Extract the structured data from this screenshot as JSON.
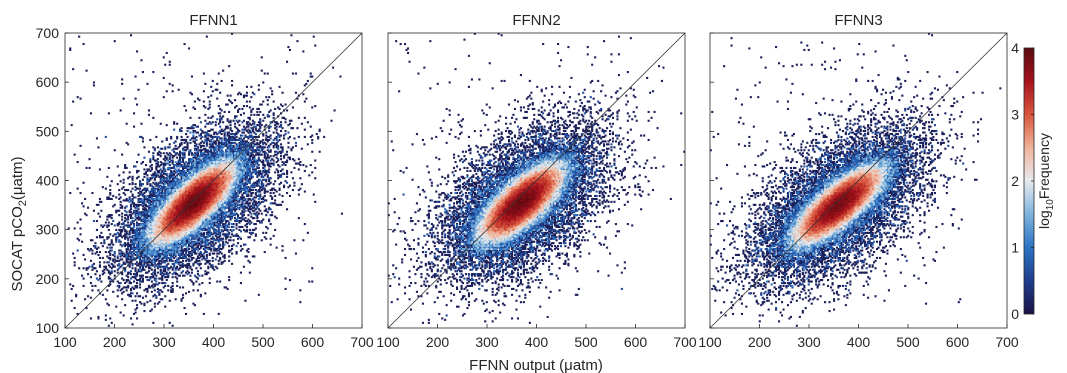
{
  "chart_data": {
    "type": "heatmap",
    "panels": [
      {
        "title": "FFNN1",
        "xlim": [
          100,
          700
        ],
        "ylim": [
          100,
          700
        ],
        "core": {
          "x_center": 360,
          "y_center": 355,
          "sd_major": 48,
          "sd_minor": 17,
          "angle_deg": 44
        },
        "one_to_one_line": true
      },
      {
        "title": "FFNN2",
        "xlim": [
          100,
          700
        ],
        "ylim": [
          100,
          700
        ],
        "core": {
          "x_center": 370,
          "y_center": 355,
          "sd_major": 48,
          "sd_minor": 18,
          "angle_deg": 42
        },
        "one_to_one_line": true
      },
      {
        "title": "FFNN3",
        "xlim": [
          100,
          700
        ],
        "ylim": [
          100,
          700
        ],
        "core": {
          "x_center": 360,
          "y_center": 350,
          "sd_major": 50,
          "sd_minor": 17,
          "angle_deg": 40
        },
        "one_to_one_line": true
      }
    ],
    "xlabel": "FFNN output (μatm)",
    "ylabel": {
      "prefix": "SOCAT pCO",
      "sub": "2",
      "suffix": "(μatm)"
    },
    "xticks": [
      "100",
      "200",
      "300",
      "400",
      "500",
      "600",
      "700"
    ],
    "yticks": [
      "100",
      "200",
      "300",
      "400",
      "500",
      "600",
      "700"
    ],
    "colorbar": {
      "label": {
        "prefix": "log",
        "sub": "10",
        "suffix": "Frequency"
      },
      "range": [
        0,
        4
      ],
      "ticks": [
        "0",
        "1",
        "2",
        "3",
        "4"
      ],
      "colormap": [
        "#1a1446",
        "#1f3d8c",
        "#2b73c4",
        "#7db3dc",
        "#e6eaee",
        "#f0b49a",
        "#d9553c",
        "#a6121c",
        "#5c0a10"
      ]
    },
    "grid": false
  }
}
